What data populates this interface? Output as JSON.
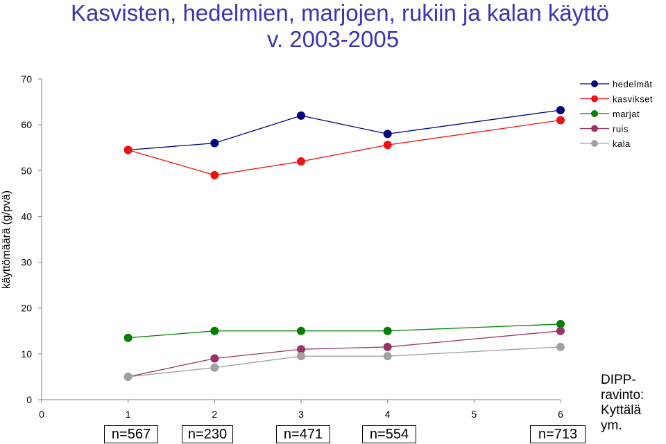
{
  "title_line1": "Kasvisten, hedelmien, marjojen, rukiin ja kalan käyttö",
  "title_line2": "v. 2003-2005",
  "source_lines": [
    "DIPP-",
    "ravinto:",
    "Kyttälä",
    "ym."
  ],
  "sample_sizes": [
    "n=567",
    "n=230",
    "n=471",
    "n=554",
    "n=713"
  ],
  "colors": {
    "hedelmät": "#000080",
    "kasvikset": "#ee1111",
    "marjat": "#008000",
    "ruis": "#993366",
    "kala": "#a0a0a0"
  },
  "chart_data": {
    "type": "line",
    "title": "Kasvisten, hedelmien, marjojen, rukiin ja kalan käyttö v. 2003-2005",
    "xlabel": "",
    "ylabel": "käyttömäärä (g/pvä)",
    "x": [
      1,
      2,
      3,
      4,
      6
    ],
    "x_ticks": [
      "0",
      "1",
      "2",
      "3",
      "4",
      "5",
      "6"
    ],
    "y_ticks": [
      "0",
      "10",
      "20",
      "30",
      "40",
      "50",
      "60",
      "70"
    ],
    "xlim": [
      0,
      6
    ],
    "ylim": [
      0,
      70
    ],
    "grid": false,
    "legend_position": "top-right",
    "series": [
      {
        "name": "hedelmät",
        "values": [
          54.5,
          56.0,
          62.0,
          58.0,
          63.2
        ]
      },
      {
        "name": "kasvikset",
        "values": [
          54.5,
          49.0,
          52.0,
          55.6,
          61.0
        ]
      },
      {
        "name": "marjat",
        "values": [
          13.5,
          15.0,
          15.0,
          15.0,
          16.5
        ]
      },
      {
        "name": "ruis",
        "values": [
          5.0,
          9.0,
          11.0,
          11.5,
          15.0
        ]
      },
      {
        "name": "kala",
        "values": [
          5.0,
          7.0,
          9.5,
          9.5,
          11.5
        ]
      }
    ]
  }
}
